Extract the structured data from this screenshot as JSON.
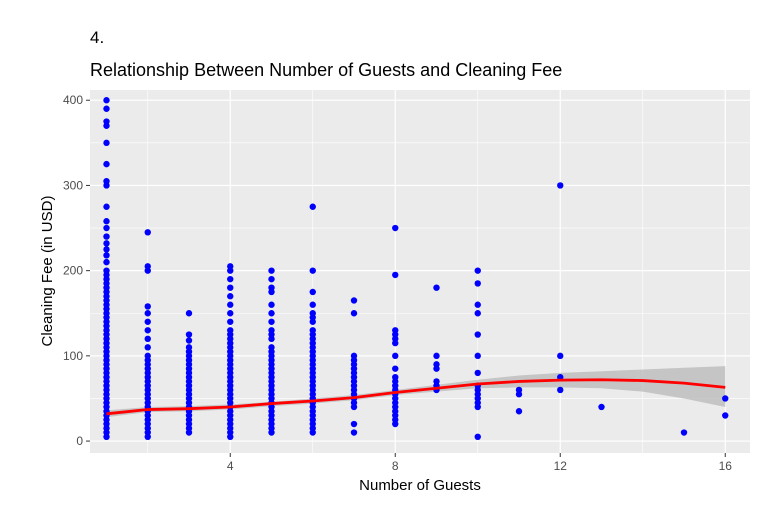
{
  "figure_tag": "4.",
  "chart_data": {
    "type": "scatter",
    "title": "Relationship Between Number of Guests and Cleaning Fee",
    "xlabel": "Number of Guests",
    "ylabel": "Cleaning Fee (in USD)",
    "xlim": [
      0.6,
      16.6
    ],
    "ylim": [
      -14,
      412
    ],
    "x_ticks": [
      4,
      8,
      12,
      16
    ],
    "y_ticks": [
      0,
      100,
      200,
      300,
      400
    ],
    "grid": true,
    "colors": {
      "points": "#0000ff",
      "smooth_line": "#ff0000",
      "confidence_band": "#bebebe",
      "panel": "#ebebeb",
      "grid": "#ffffff"
    },
    "points": [
      [
        1,
        400
      ],
      [
        1,
        390
      ],
      [
        1,
        375
      ],
      [
        1,
        370
      ],
      [
        1,
        350
      ],
      [
        1,
        325
      ],
      [
        1,
        305
      ],
      [
        1,
        300
      ],
      [
        1,
        275
      ],
      [
        1,
        258
      ],
      [
        1,
        250
      ],
      [
        1,
        240
      ],
      [
        1,
        232
      ],
      [
        1,
        225
      ],
      [
        1,
        218
      ],
      [
        1,
        210
      ],
      [
        1,
        200
      ],
      [
        1,
        195
      ],
      [
        1,
        190
      ],
      [
        1,
        185
      ],
      [
        1,
        180
      ],
      [
        1,
        175
      ],
      [
        1,
        170
      ],
      [
        1,
        165
      ],
      [
        1,
        160
      ],
      [
        1,
        155
      ],
      [
        1,
        150
      ],
      [
        1,
        145
      ],
      [
        1,
        140
      ],
      [
        1,
        135
      ],
      [
        1,
        130
      ],
      [
        1,
        125
      ],
      [
        1,
        120
      ],
      [
        1,
        115
      ],
      [
        1,
        110
      ],
      [
        1,
        105
      ],
      [
        1,
        100
      ],
      [
        1,
        95
      ],
      [
        1,
        90
      ],
      [
        1,
        85
      ],
      [
        1,
        80
      ],
      [
        1,
        75
      ],
      [
        1,
        70
      ],
      [
        1,
        65
      ],
      [
        1,
        60
      ],
      [
        1,
        55
      ],
      [
        1,
        50
      ],
      [
        1,
        45
      ],
      [
        1,
        40
      ],
      [
        1,
        35
      ],
      [
        1,
        30
      ],
      [
        1,
        25
      ],
      [
        1,
        20
      ],
      [
        1,
        15
      ],
      [
        1,
        10
      ],
      [
        1,
        5
      ],
      [
        2,
        245
      ],
      [
        2,
        205
      ],
      [
        2,
        200
      ],
      [
        2,
        158
      ],
      [
        2,
        150
      ],
      [
        2,
        140
      ],
      [
        2,
        130
      ],
      [
        2,
        120
      ],
      [
        2,
        110
      ],
      [
        2,
        100
      ],
      [
        2,
        95
      ],
      [
        2,
        90
      ],
      [
        2,
        85
      ],
      [
        2,
        80
      ],
      [
        2,
        75
      ],
      [
        2,
        70
      ],
      [
        2,
        65
      ],
      [
        2,
        60
      ],
      [
        2,
        55
      ],
      [
        2,
        50
      ],
      [
        2,
        45
      ],
      [
        2,
        40
      ],
      [
        2,
        35
      ],
      [
        2,
        30
      ],
      [
        2,
        25
      ],
      [
        2,
        20
      ],
      [
        2,
        15
      ],
      [
        2,
        10
      ],
      [
        2,
        5
      ],
      [
        3,
        150
      ],
      [
        3,
        125
      ],
      [
        3,
        118
      ],
      [
        3,
        110
      ],
      [
        3,
        105
      ],
      [
        3,
        100
      ],
      [
        3,
        95
      ],
      [
        3,
        90
      ],
      [
        3,
        85
      ],
      [
        3,
        80
      ],
      [
        3,
        75
      ],
      [
        3,
        70
      ],
      [
        3,
        65
      ],
      [
        3,
        60
      ],
      [
        3,
        55
      ],
      [
        3,
        50
      ],
      [
        3,
        45
      ],
      [
        3,
        40
      ],
      [
        3,
        35
      ],
      [
        3,
        30
      ],
      [
        3,
        25
      ],
      [
        3,
        20
      ],
      [
        3,
        15
      ],
      [
        3,
        10
      ],
      [
        4,
        205
      ],
      [
        4,
        200
      ],
      [
        4,
        190
      ],
      [
        4,
        180
      ],
      [
        4,
        170
      ],
      [
        4,
        160
      ],
      [
        4,
        150
      ],
      [
        4,
        140
      ],
      [
        4,
        130
      ],
      [
        4,
        125
      ],
      [
        4,
        120
      ],
      [
        4,
        115
      ],
      [
        4,
        110
      ],
      [
        4,
        105
      ],
      [
        4,
        100
      ],
      [
        4,
        95
      ],
      [
        4,
        90
      ],
      [
        4,
        85
      ],
      [
        4,
        80
      ],
      [
        4,
        75
      ],
      [
        4,
        70
      ],
      [
        4,
        65
      ],
      [
        4,
        60
      ],
      [
        4,
        55
      ],
      [
        4,
        50
      ],
      [
        4,
        45
      ],
      [
        4,
        40
      ],
      [
        4,
        35
      ],
      [
        4,
        30
      ],
      [
        4,
        25
      ],
      [
        4,
        20
      ],
      [
        4,
        15
      ],
      [
        4,
        10
      ],
      [
        4,
        5
      ],
      [
        5,
        200
      ],
      [
        5,
        190
      ],
      [
        5,
        180
      ],
      [
        5,
        175
      ],
      [
        5,
        160
      ],
      [
        5,
        150
      ],
      [
        5,
        140
      ],
      [
        5,
        130
      ],
      [
        5,
        125
      ],
      [
        5,
        120
      ],
      [
        5,
        110
      ],
      [
        5,
        105
      ],
      [
        5,
        100
      ],
      [
        5,
        95
      ],
      [
        5,
        90
      ],
      [
        5,
        85
      ],
      [
        5,
        80
      ],
      [
        5,
        75
      ],
      [
        5,
        70
      ],
      [
        5,
        65
      ],
      [
        5,
        60
      ],
      [
        5,
        55
      ],
      [
        5,
        50
      ],
      [
        5,
        45
      ],
      [
        5,
        40
      ],
      [
        5,
        35
      ],
      [
        5,
        30
      ],
      [
        5,
        25
      ],
      [
        5,
        20
      ],
      [
        5,
        15
      ],
      [
        5,
        10
      ],
      [
        6,
        275
      ],
      [
        6,
        200
      ],
      [
        6,
        175
      ],
      [
        6,
        160
      ],
      [
        6,
        150
      ],
      [
        6,
        145
      ],
      [
        6,
        140
      ],
      [
        6,
        130
      ],
      [
        6,
        125
      ],
      [
        6,
        120
      ],
      [
        6,
        115
      ],
      [
        6,
        110
      ],
      [
        6,
        105
      ],
      [
        6,
        100
      ],
      [
        6,
        95
      ],
      [
        6,
        90
      ],
      [
        6,
        85
      ],
      [
        6,
        80
      ],
      [
        6,
        75
      ],
      [
        6,
        70
      ],
      [
        6,
        65
      ],
      [
        6,
        60
      ],
      [
        6,
        55
      ],
      [
        6,
        50
      ],
      [
        6,
        45
      ],
      [
        6,
        40
      ],
      [
        6,
        35
      ],
      [
        6,
        30
      ],
      [
        6,
        25
      ],
      [
        6,
        20
      ],
      [
        6,
        15
      ],
      [
        6,
        10
      ],
      [
        7,
        165
      ],
      [
        7,
        150
      ],
      [
        7,
        100
      ],
      [
        7,
        95
      ],
      [
        7,
        90
      ],
      [
        7,
        85
      ],
      [
        7,
        80
      ],
      [
        7,
        75
      ],
      [
        7,
        70
      ],
      [
        7,
        65
      ],
      [
        7,
        60
      ],
      [
        7,
        55
      ],
      [
        7,
        50
      ],
      [
        7,
        45
      ],
      [
        7,
        40
      ],
      [
        7,
        20
      ],
      [
        7,
        10
      ],
      [
        8,
        250
      ],
      [
        8,
        195
      ],
      [
        8,
        130
      ],
      [
        8,
        125
      ],
      [
        8,
        120
      ],
      [
        8,
        115
      ],
      [
        8,
        100
      ],
      [
        8,
        85
      ],
      [
        8,
        75
      ],
      [
        8,
        70
      ],
      [
        8,
        65
      ],
      [
        8,
        60
      ],
      [
        8,
        55
      ],
      [
        8,
        50
      ],
      [
        8,
        45
      ],
      [
        8,
        40
      ],
      [
        8,
        35
      ],
      [
        8,
        30
      ],
      [
        8,
        25
      ],
      [
        8,
        20
      ],
      [
        9,
        180
      ],
      [
        9,
        100
      ],
      [
        9,
        90
      ],
      [
        9,
        85
      ],
      [
        9,
        70
      ],
      [
        9,
        65
      ],
      [
        9,
        60
      ],
      [
        10,
        200
      ],
      [
        10,
        185
      ],
      [
        10,
        160
      ],
      [
        10,
        150
      ],
      [
        10,
        125
      ],
      [
        10,
        100
      ],
      [
        10,
        80
      ],
      [
        10,
        65
      ],
      [
        10,
        60
      ],
      [
        10,
        55
      ],
      [
        10,
        50
      ],
      [
        10,
        45
      ],
      [
        10,
        40
      ],
      [
        10,
        5
      ],
      [
        11,
        60
      ],
      [
        11,
        55
      ],
      [
        11,
        35
      ],
      [
        12,
        300
      ],
      [
        12,
        100
      ],
      [
        12,
        75
      ],
      [
        12,
        60
      ],
      [
        13,
        40
      ],
      [
        15,
        10
      ],
      [
        16,
        50
      ],
      [
        16,
        30
      ]
    ],
    "smooth_line": [
      [
        1,
        32
      ],
      [
        1.5,
        34.5
      ],
      [
        2,
        37
      ],
      [
        3,
        38
      ],
      [
        4,
        40
      ],
      [
        5,
        44
      ],
      [
        6,
        47
      ],
      [
        7,
        51
      ],
      [
        8,
        57
      ],
      [
        9,
        62
      ],
      [
        10,
        67
      ],
      [
        11,
        70
      ],
      [
        12,
        71.5
      ],
      [
        13,
        72
      ],
      [
        14,
        71
      ],
      [
        15,
        68
      ],
      [
        16,
        63
      ]
    ],
    "band_upper": [
      [
        1,
        36
      ],
      [
        2,
        40
      ],
      [
        3,
        41
      ],
      [
        4,
        43
      ],
      [
        5,
        46
      ],
      [
        6,
        50
      ],
      [
        7,
        54
      ],
      [
        8,
        60
      ],
      [
        9,
        66
      ],
      [
        10,
        72
      ],
      [
        11,
        77
      ],
      [
        12,
        80
      ],
      [
        13,
        82
      ],
      [
        14,
        84
      ],
      [
        15,
        86
      ],
      [
        16,
        88
      ]
    ],
    "band_lower": [
      [
        1,
        28
      ],
      [
        2,
        34
      ],
      [
        3,
        35
      ],
      [
        4,
        37
      ],
      [
        5,
        41
      ],
      [
        6,
        44
      ],
      [
        7,
        48
      ],
      [
        8,
        54
      ],
      [
        9,
        58
      ],
      [
        10,
        62
      ],
      [
        11,
        63
      ],
      [
        12,
        63
      ],
      [
        13,
        62
      ],
      [
        14,
        58
      ],
      [
        15,
        50
      ],
      [
        16,
        40
      ]
    ]
  }
}
